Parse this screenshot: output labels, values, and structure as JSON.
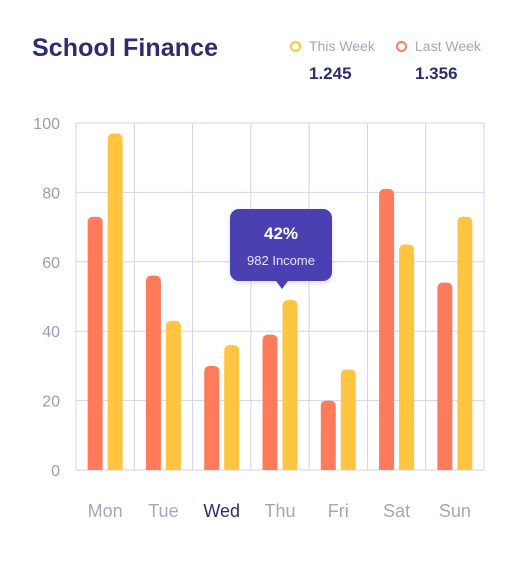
{
  "header": {
    "title": "School Finance"
  },
  "legend": {
    "this_week": {
      "label": "This Week",
      "value": "1.245",
      "color": "#ffc440"
    },
    "last_week": {
      "label": "Last Week",
      "value": "1.356",
      "color": "#ff7b5c"
    }
  },
  "tooltip": {
    "percent": "42%",
    "text": "982 Income",
    "day": "Thu"
  },
  "chart_data": {
    "type": "bar",
    "title": "School Finance",
    "xlabel": "",
    "ylabel": "",
    "categories": [
      "Mon",
      "Tue",
      "Wed",
      "Thu",
      "Fri",
      "Sat",
      "Sun"
    ],
    "highlighted_category": "Wed",
    "ylim": [
      0,
      100
    ],
    "yticks": [
      0,
      20,
      40,
      60,
      80,
      100
    ],
    "grid": true,
    "legend_position": "top-right",
    "series": [
      {
        "name": "Last Week",
        "color": "#ff7b5c",
        "values": [
          73,
          56,
          30,
          39,
          20,
          81,
          54
        ]
      },
      {
        "name": "This Week",
        "color": "#ffc440",
        "values": [
          97,
          43,
          36,
          49,
          29,
          65,
          73
        ]
      }
    ]
  }
}
